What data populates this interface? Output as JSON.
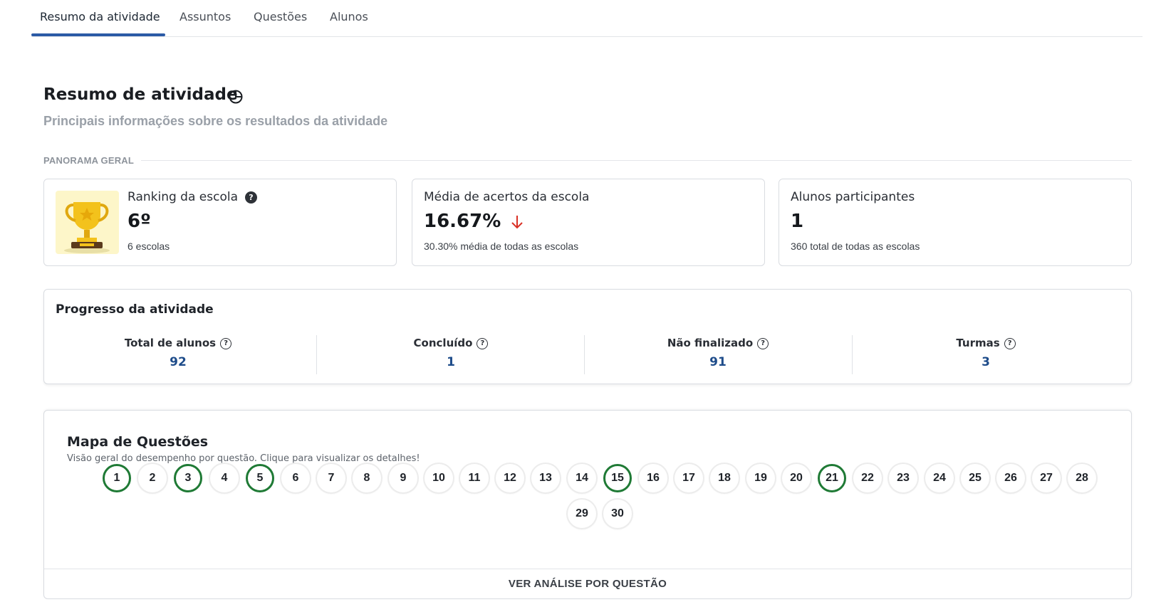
{
  "tabs": [
    {
      "label": "Resumo da atividade",
      "active": true
    },
    {
      "label": "Assuntos",
      "active": false
    },
    {
      "label": "Questões",
      "active": false
    },
    {
      "label": "Alunos",
      "active": false
    }
  ],
  "header": {
    "title": "Resumo de atividade",
    "subtitle": "Principais informações sobre os resultados da atividade"
  },
  "panorama": {
    "label": "PANORAMA GERAL",
    "cards": [
      {
        "label": "Ranking da escola",
        "value": "6º",
        "sub": "6 escolas",
        "icon": "trophy-icon"
      },
      {
        "label": "Média de acertos da escola",
        "value": "16.67%",
        "sub": "30.30% média de todas as escolas",
        "trend": "down",
        "trend_color": "#d93025"
      },
      {
        "label": "Alunos participantes",
        "value": "1",
        "sub": "360 total de todas as escolas"
      }
    ]
  },
  "progress": {
    "title": "Progresso da atividade",
    "columns": [
      {
        "label": "Total de alunos",
        "value": "92"
      },
      {
        "label": "Concluído",
        "value": "1"
      },
      {
        "label": "Não finalizado",
        "value": "91"
      },
      {
        "label": "Turmas",
        "value": "3"
      }
    ]
  },
  "question_map": {
    "title": "Mapa de Questões",
    "subtitle": "Visão geral do desempenho por questão. Clique para visualizar os detalhes!",
    "correct_color": "#1f7a35",
    "questions": [
      {
        "n": "1",
        "correct": true
      },
      {
        "n": "2",
        "correct": false
      },
      {
        "n": "3",
        "correct": true
      },
      {
        "n": "4",
        "correct": false
      },
      {
        "n": "5",
        "correct": true
      },
      {
        "n": "6",
        "correct": false
      },
      {
        "n": "7",
        "correct": false
      },
      {
        "n": "8",
        "correct": false
      },
      {
        "n": "9",
        "correct": false
      },
      {
        "n": "10",
        "correct": false
      },
      {
        "n": "11",
        "correct": false
      },
      {
        "n": "12",
        "correct": false
      },
      {
        "n": "13",
        "correct": false
      },
      {
        "n": "14",
        "correct": false
      },
      {
        "n": "15",
        "correct": true
      },
      {
        "n": "16",
        "correct": false
      },
      {
        "n": "17",
        "correct": false
      },
      {
        "n": "18",
        "correct": false
      },
      {
        "n": "19",
        "correct": false
      },
      {
        "n": "20",
        "correct": false
      },
      {
        "n": "21",
        "correct": true
      },
      {
        "n": "22",
        "correct": false
      },
      {
        "n": "23",
        "correct": false
      },
      {
        "n": "24",
        "correct": false
      },
      {
        "n": "25",
        "correct": false
      },
      {
        "n": "26",
        "correct": false
      },
      {
        "n": "27",
        "correct": false
      },
      {
        "n": "28",
        "correct": false
      },
      {
        "n": "29",
        "correct": false
      },
      {
        "n": "30",
        "correct": false
      }
    ],
    "footer_label": "VER ANÁLISE POR QUESTÃO"
  },
  "colors": {
    "accent": "#2b5aa6",
    "value_blue": "#1e4c8a"
  }
}
